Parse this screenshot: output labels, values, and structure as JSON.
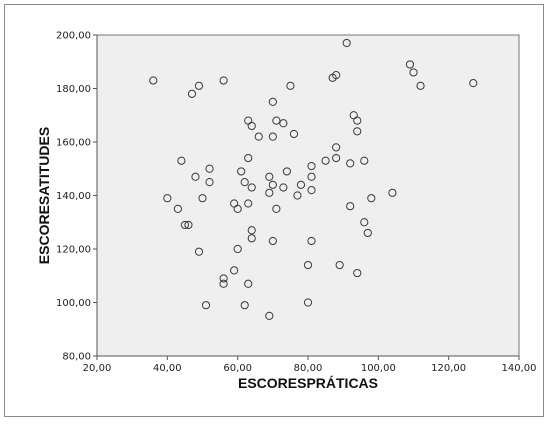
{
  "colors": {
    "plot_background": "#efefef",
    "marker_stroke": "#3a3a3a",
    "axis_line": "#555555",
    "frame_border": "#8a8a8a"
  },
  "chart_data": {
    "type": "scatter",
    "title": "",
    "xlabel": "ESCORESPRÁTICAS",
    "ylabel": "ESCORESATITUDES",
    "xlim": [
      20,
      140
    ],
    "ylim": [
      80,
      200
    ],
    "xticks": [
      20,
      40,
      60,
      80,
      100,
      120,
      140
    ],
    "yticks": [
      80,
      100,
      120,
      140,
      160,
      180,
      200
    ],
    "xtick_labels": [
      "20,00",
      "40,00",
      "60,00",
      "80,00",
      "100,00",
      "120,00",
      "140,00"
    ],
    "ytick_labels": [
      "80,00",
      "100,00",
      "120,00",
      "140,00",
      "160,00",
      "180,00",
      "200,00"
    ],
    "grid": false,
    "marker": "open-circle",
    "points": [
      {
        "x": 36,
        "y": 183
      },
      {
        "x": 47,
        "y": 178
      },
      {
        "x": 49,
        "y": 181
      },
      {
        "x": 56,
        "y": 183
      },
      {
        "x": 70,
        "y": 175
      },
      {
        "x": 75,
        "y": 181
      },
      {
        "x": 87,
        "y": 184
      },
      {
        "x": 88,
        "y": 185
      },
      {
        "x": 91,
        "y": 197
      },
      {
        "x": 109,
        "y": 189
      },
      {
        "x": 110,
        "y": 186
      },
      {
        "x": 112,
        "y": 181
      },
      {
        "x": 127,
        "y": 182
      },
      {
        "x": 63,
        "y": 168
      },
      {
        "x": 64,
        "y": 166
      },
      {
        "x": 71,
        "y": 168
      },
      {
        "x": 73,
        "y": 167
      },
      {
        "x": 66,
        "y": 162
      },
      {
        "x": 70,
        "y": 162
      },
      {
        "x": 76,
        "y": 163
      },
      {
        "x": 93,
        "y": 170
      },
      {
        "x": 94,
        "y": 168
      },
      {
        "x": 94,
        "y": 164
      },
      {
        "x": 88,
        "y": 158
      },
      {
        "x": 44,
        "y": 153
      },
      {
        "x": 52,
        "y": 150
      },
      {
        "x": 63,
        "y": 154
      },
      {
        "x": 61,
        "y": 149
      },
      {
        "x": 69,
        "y": 147
      },
      {
        "x": 74,
        "y": 149
      },
      {
        "x": 81,
        "y": 151
      },
      {
        "x": 85,
        "y": 153
      },
      {
        "x": 88,
        "y": 154
      },
      {
        "x": 92,
        "y": 152
      },
      {
        "x": 96,
        "y": 153
      },
      {
        "x": 48,
        "y": 147
      },
      {
        "x": 52,
        "y": 145
      },
      {
        "x": 62,
        "y": 145
      },
      {
        "x": 64,
        "y": 143
      },
      {
        "x": 70,
        "y": 144
      },
      {
        "x": 73,
        "y": 143
      },
      {
        "x": 78,
        "y": 144
      },
      {
        "x": 81,
        "y": 147
      },
      {
        "x": 69,
        "y": 141
      },
      {
        "x": 77,
        "y": 140
      },
      {
        "x": 81,
        "y": 142
      },
      {
        "x": 40,
        "y": 139
      },
      {
        "x": 50,
        "y": 139
      },
      {
        "x": 59,
        "y": 137
      },
      {
        "x": 60,
        "y": 135
      },
      {
        "x": 63,
        "y": 137
      },
      {
        "x": 71,
        "y": 135
      },
      {
        "x": 43,
        "y": 135
      },
      {
        "x": 92,
        "y": 136
      },
      {
        "x": 98,
        "y": 139
      },
      {
        "x": 104,
        "y": 141
      },
      {
        "x": 45,
        "y": 129
      },
      {
        "x": 46,
        "y": 129
      },
      {
        "x": 64,
        "y": 127
      },
      {
        "x": 64,
        "y": 124
      },
      {
        "x": 70,
        "y": 123
      },
      {
        "x": 81,
        "y": 123
      },
      {
        "x": 96,
        "y": 130
      },
      {
        "x": 97,
        "y": 126
      },
      {
        "x": 49,
        "y": 119
      },
      {
        "x": 60,
        "y": 120
      },
      {
        "x": 80,
        "y": 114
      },
      {
        "x": 89,
        "y": 114
      },
      {
        "x": 94,
        "y": 111
      },
      {
        "x": 59,
        "y": 112
      },
      {
        "x": 56,
        "y": 109
      },
      {
        "x": 56,
        "y": 107
      },
      {
        "x": 63,
        "y": 107
      },
      {
        "x": 51,
        "y": 99
      },
      {
        "x": 62,
        "y": 99
      },
      {
        "x": 80,
        "y": 100
      },
      {
        "x": 69,
        "y": 95
      }
    ]
  }
}
